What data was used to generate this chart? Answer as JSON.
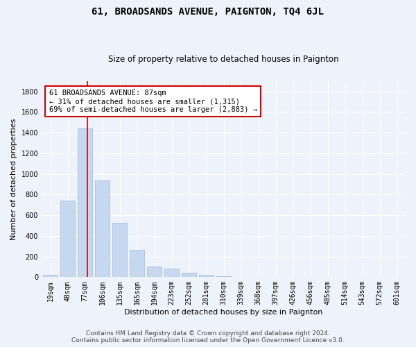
{
  "title": "61, BROADSANDS AVENUE, PAIGNTON, TQ4 6JL",
  "subtitle": "Size of property relative to detached houses in Paignton",
  "xlabel": "Distribution of detached houses by size in Paignton",
  "ylabel": "Number of detached properties",
  "categories": [
    "19sqm",
    "48sqm",
    "77sqm",
    "106sqm",
    "135sqm",
    "165sqm",
    "194sqm",
    "223sqm",
    "252sqm",
    "281sqm",
    "310sqm",
    "339sqm",
    "368sqm",
    "397sqm",
    "426sqm",
    "456sqm",
    "485sqm",
    "514sqm",
    "543sqm",
    "572sqm",
    "601sqm"
  ],
  "values": [
    25,
    740,
    1440,
    940,
    530,
    265,
    100,
    85,
    40,
    25,
    10,
    5,
    5,
    2,
    2,
    2,
    2,
    2,
    2,
    2,
    2
  ],
  "bar_color": "#c5d8f0",
  "bar_edge_color": "#a0b8d8",
  "highlight_bar_index": 2,
  "highlight_line_color": "#cc0000",
  "annotation_text": "61 BROADSANDS AVENUE: 87sqm\n← 31% of detached houses are smaller (1,315)\n69% of semi-detached houses are larger (2,883) →",
  "annotation_box_color": "#ffffff",
  "annotation_box_edge_color": "#cc0000",
  "ylim": [
    0,
    1900
  ],
  "yticks": [
    0,
    200,
    400,
    600,
    800,
    1000,
    1200,
    1400,
    1600,
    1800
  ],
  "background_color": "#eef2fa",
  "footer_line1": "Contains HM Land Registry data © Crown copyright and database right 2024.",
  "footer_line2": "Contains public sector information licensed under the Open Government Licence v3.0.",
  "grid_color": "#ffffff",
  "title_fontsize": 10,
  "subtitle_fontsize": 8.5,
  "xlabel_fontsize": 8,
  "ylabel_fontsize": 8,
  "tick_fontsize": 7,
  "footer_fontsize": 6.5,
  "annotation_fontsize": 7.5
}
